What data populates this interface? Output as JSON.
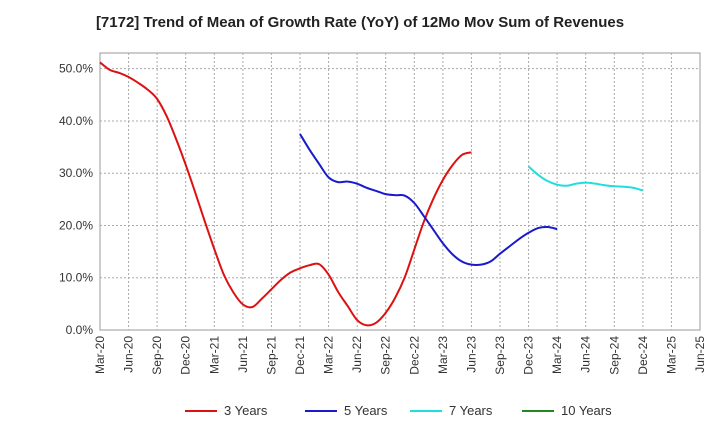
{
  "chart_data": {
    "type": "line",
    "title": "[7172]  Trend of Mean of Growth Rate (YoY) of 12Mo Mov Sum of Revenues",
    "xlabel": "",
    "ylabel": "",
    "x_ticks": [
      "Mar-20",
      "Jun-20",
      "Sep-20",
      "Dec-20",
      "Mar-21",
      "Jun-21",
      "Sep-21",
      "Dec-21",
      "Mar-22",
      "Jun-22",
      "Sep-22",
      "Dec-22",
      "Mar-23",
      "Jun-23",
      "Sep-23",
      "Dec-23",
      "Mar-24",
      "Jun-24",
      "Sep-24",
      "Dec-24",
      "Mar-25",
      "Jun-25"
    ],
    "y_ticks": [
      "0.0%",
      "10.0%",
      "20.0%",
      "30.0%",
      "40.0%",
      "50.0%"
    ],
    "ylim": [
      0,
      53
    ],
    "grid": true,
    "legend_position": "bottom",
    "series": [
      {
        "name": "3 Years",
        "color": "#dd1111",
        "start_index": 0,
        "values": [
          51.2,
          49.8,
          49.2,
          48.4,
          47.3,
          46.0,
          44.2,
          40.9,
          36.5,
          31.6,
          26.3,
          20.8,
          15.5,
          10.6,
          7.2,
          4.9,
          4.4,
          6.0,
          7.8,
          9.6,
          11.0,
          11.8,
          12.4,
          12.6,
          10.6,
          7.3,
          4.6,
          1.9,
          0.9,
          1.4,
          3.3,
          6.2,
          10.1,
          15.4,
          20.7,
          25.1,
          28.7,
          31.5,
          33.5,
          34.0
        ]
      },
      {
        "name": "5 Years",
        "color": "#1a1acc",
        "start_index": 21,
        "values": [
          37.5,
          34.5,
          31.8,
          29.2,
          28.3,
          28.4,
          28.0,
          27.2,
          26.6,
          26.0,
          25.8,
          25.7,
          24.3,
          21.8,
          19.2,
          16.6,
          14.5,
          13.1,
          12.5,
          12.5,
          13.1,
          14.6,
          16.0,
          17.4,
          18.6,
          19.5,
          19.7,
          19.3
        ]
      },
      {
        "name": "7 Years",
        "color": "#22dddd",
        "start_index": 45,
        "values": [
          31.3,
          29.7,
          28.5,
          27.8,
          27.6,
          28.0,
          28.2,
          28.0,
          27.7,
          27.5,
          27.4,
          27.2,
          26.7
        ]
      },
      {
        "name": "10 Years",
        "color": "#228822",
        "start_index": 0,
        "values": []
      }
    ]
  }
}
